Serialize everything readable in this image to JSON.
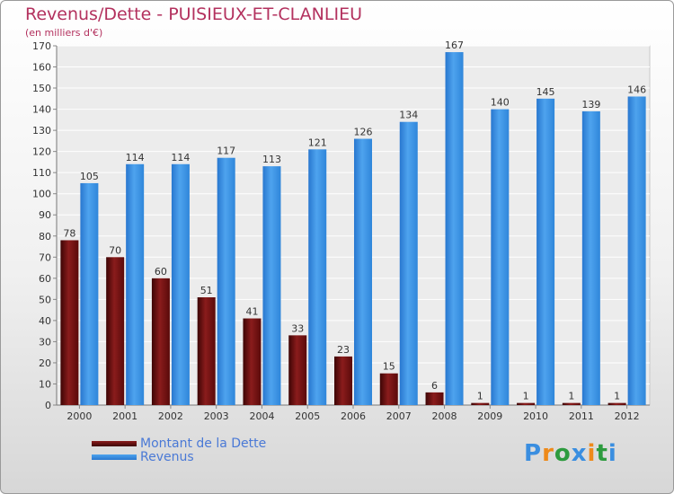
{
  "header": {
    "title": "Revenus/Dette - PUISIEUX-ET-CLANLIEU",
    "subtitle": "(en milliers d'€)"
  },
  "colors": {
    "dette": "#6b0d0d",
    "revenus": "#3a8ee0",
    "title": "#b3315e",
    "legend_text": "#4a79d6"
  },
  "logo": {
    "text": "Proxiti",
    "letter_colors": [
      "#3a8ee0",
      "#ee8a1a",
      "#2d9b3e",
      "#3a8ee0",
      "#ee8a1a",
      "#2d9b3e",
      "#3a8ee0"
    ]
  },
  "chart_data": {
    "type": "bar",
    "title": "Revenus/Dette - PUISIEUX-ET-CLANLIEU",
    "subtitle": "(en milliers d'€)",
    "categories": [
      "2000",
      "2001",
      "2002",
      "2003",
      "2004",
      "2005",
      "2006",
      "2007",
      "2008",
      "2009",
      "2010",
      "2011",
      "2012"
    ],
    "series": [
      {
        "name": "Montant de la Dette",
        "values": [
          78,
          70,
          60,
          51,
          41,
          33,
          23,
          15,
          6,
          1,
          1,
          1,
          1
        ]
      },
      {
        "name": "Revenus",
        "values": [
          105,
          114,
          114,
          117,
          113,
          121,
          126,
          134,
          167,
          140,
          145,
          139,
          146
        ]
      }
    ],
    "yticks": [
      0,
      10,
      20,
      30,
      40,
      50,
      60,
      70,
      80,
      90,
      100,
      110,
      120,
      130,
      140,
      150,
      160,
      170
    ],
    "ylim": [
      0,
      170
    ],
    "grid": true,
    "legend_position": "bottom-left"
  }
}
